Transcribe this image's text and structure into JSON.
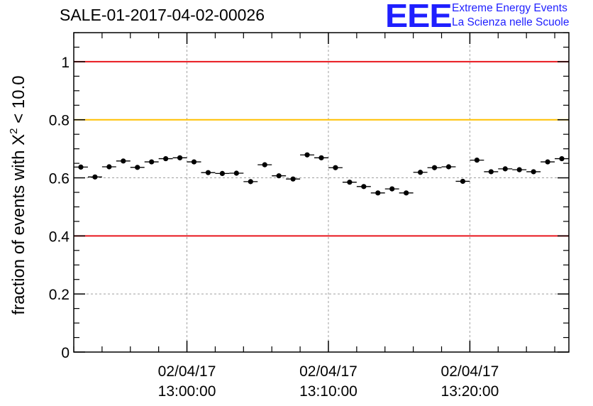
{
  "title": "SALE-01-2017-04-02-00026",
  "logo": {
    "mark": "EEE",
    "line1": "Extreme Energy Events",
    "line2": "La Scienza nelle Scuole",
    "color": "#1f1fff"
  },
  "chart_data": {
    "type": "scatter",
    "title": "SALE-01-2017-04-02-00026",
    "xlabel": "",
    "ylabel": "fraction of events with χ² < 10.0",
    "ylabel_parts": {
      "pre": "fraction of events with ",
      "chi": "X",
      "sup": "2",
      "post": " < 10.0"
    },
    "x_unit": "minutes",
    "xlim": [
      "02/04/17 12:52:00",
      "02/04/17 13:27:00"
    ],
    "ylim": [
      0,
      1.1
    ],
    "y_ticks": [
      "0",
      "0.2",
      "0.4",
      "0.6",
      "0.8",
      "1"
    ],
    "x_tick_labels": [
      {
        "x": "02/04/17 13:00:00",
        "date": "02/04/17",
        "time": "13:00:00"
      },
      {
        "x": "02/04/17 13:10:00",
        "date": "02/04/17",
        "time": "13:10:00"
      },
      {
        "x": "02/04/17 13:20:00",
        "date": "02/04/17",
        "time": "13:20:00"
      }
    ],
    "grid": true,
    "reference_lines": [
      {
        "y": 1.0,
        "color": "#e8161d"
      },
      {
        "y": 0.8,
        "color": "#ffc000"
      },
      {
        "y": 0.4,
        "color": "#e8161d"
      }
    ],
    "series": [
      {
        "marker_color": "#000000",
        "x": [
          "12:52:30",
          "12:53:30",
          "12:54:30",
          "12:55:30",
          "12:56:30",
          "12:57:30",
          "12:58:30",
          "12:59:30",
          "13:00:30",
          "13:01:30",
          "13:02:30",
          "13:03:30",
          "13:04:30",
          "13:05:30",
          "13:06:30",
          "13:07:30",
          "13:08:30",
          "13:09:30",
          "13:10:30",
          "13:11:30",
          "13:12:30",
          "13:13:30",
          "13:14:30",
          "13:15:30",
          "13:16:30",
          "13:17:30",
          "13:18:30",
          "13:19:30",
          "13:20:30",
          "13:21:30",
          "13:22:30",
          "13:23:30",
          "13:24:30",
          "13:25:30",
          "13:26:30"
        ],
        "y": [
          0.637,
          0.603,
          0.638,
          0.658,
          0.636,
          0.655,
          0.666,
          0.669,
          0.655,
          0.618,
          0.615,
          0.616,
          0.587,
          0.645,
          0.607,
          0.596,
          0.679,
          0.669,
          0.635,
          0.585,
          0.57,
          0.548,
          0.562,
          0.548,
          0.619,
          0.635,
          0.638,
          0.588,
          0.661,
          0.621,
          0.631,
          0.628,
          0.621,
          0.655,
          0.666
        ],
        "y_err": 0.008,
        "x_halfwidth_min": 0.5
      }
    ]
  }
}
